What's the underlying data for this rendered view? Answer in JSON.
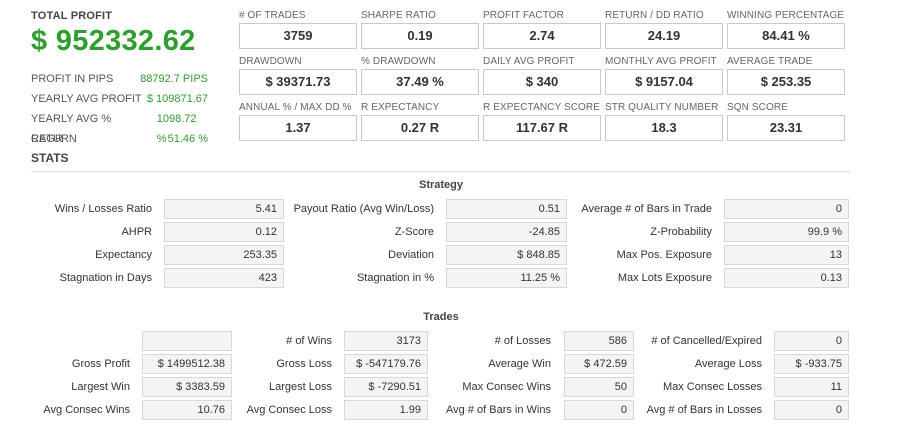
{
  "summary": {
    "total_profit_label": "TOTAL PROFIT",
    "total_profit_value": "$ 952332.62",
    "rows": [
      {
        "label": "PROFIT IN PIPS",
        "value": "88792.7 PIPS"
      },
      {
        "label": "YEARLY AVG PROFIT",
        "value": "$ 109871.67"
      },
      {
        "label": "YEARLY AVG % RETURN",
        "value": "1098.72 %"
      },
      {
        "label": "CAGR",
        "value": "51.46 %"
      }
    ]
  },
  "metrics": [
    {
      "label": "# OF TRADES",
      "value": "3759"
    },
    {
      "label": "SHARPE RATIO",
      "value": "0.19"
    },
    {
      "label": "PROFIT FACTOR",
      "value": "2.74"
    },
    {
      "label": "RETURN / DD RATIO",
      "value": "24.19"
    },
    {
      "label": "WINNING PERCENTAGE",
      "value": "84.41 %"
    },
    {
      "label": "DRAWDOWN",
      "value": "$ 39371.73"
    },
    {
      "label": "% DRAWDOWN",
      "value": "37.49 %"
    },
    {
      "label": "DAILY AVG PROFIT",
      "value": "$ 340"
    },
    {
      "label": "MONTHLY AVG PROFIT",
      "value": "$ 9157.04"
    },
    {
      "label": "AVERAGE TRADE",
      "value": "$ 253.35"
    },
    {
      "label": "ANNUAL % / MAX DD %",
      "value": "1.37"
    },
    {
      "label": "R EXPECTANCY",
      "value": "0.27 R"
    },
    {
      "label": "R EXPECTANCY SCORE",
      "value": "117.67 R"
    },
    {
      "label": "STR QUALITY NUMBER",
      "value": "18.3"
    },
    {
      "label": "SQN SCORE",
      "value": "23.31"
    }
  ],
  "stats_title": "STATS",
  "strategy": {
    "title": "Strategy",
    "rows": [
      [
        {
          "label": "Wins / Losses Ratio",
          "value": "5.41"
        },
        {
          "label": "Payout Ratio (Avg Win/Loss)",
          "value": "0.51"
        },
        {
          "label": "Average # of Bars in Trade",
          "value": "0"
        }
      ],
      [
        {
          "label": "AHPR",
          "value": "0.12"
        },
        {
          "label": "Z-Score",
          "value": "-24.85"
        },
        {
          "label": "Z-Probability",
          "value": "99.9 %"
        }
      ],
      [
        {
          "label": "Expectancy",
          "value": "253.35"
        },
        {
          "label": "Deviation",
          "value": "$ 848.85"
        },
        {
          "label": "Max Pos. Exposure",
          "value": "13"
        }
      ],
      [
        {
          "label": "Stagnation in Days",
          "value": "423"
        },
        {
          "label": "Stagnation in %",
          "value": "11.25 %"
        },
        {
          "label": "Max Lots Exposure",
          "value": "0.13"
        }
      ]
    ]
  },
  "trades": {
    "title": "Trades",
    "rows": [
      [
        {
          "label": "",
          "value": ""
        },
        {
          "label": "# of Wins",
          "value": "3173"
        },
        {
          "label": "# of Losses",
          "value": "586"
        },
        {
          "label": "# of Cancelled/Expired",
          "value": "0"
        }
      ],
      [
        {
          "label": "Gross Profit",
          "value": "$ 1499512.38"
        },
        {
          "label": "Gross Loss",
          "value": "$ -547179.76"
        },
        {
          "label": "Average Win",
          "value": "$ 472.59"
        },
        {
          "label": "Average Loss",
          "value": "$ -933.75"
        }
      ],
      [
        {
          "label": "Largest Win",
          "value": "$ 3383.59"
        },
        {
          "label": "Largest Loss",
          "value": "$ -7290.51"
        },
        {
          "label": "Max Consec Wins",
          "value": "50"
        },
        {
          "label": "Max Consec Losses",
          "value": "11"
        }
      ],
      [
        {
          "label": "Avg Consec Wins",
          "value": "10.76"
        },
        {
          "label": "Avg Consec Loss",
          "value": "1.99"
        },
        {
          "label": "Avg # of Bars in Wins",
          "value": "0"
        },
        {
          "label": "Avg # of Bars in Losses",
          "value": "0"
        }
      ]
    ]
  }
}
